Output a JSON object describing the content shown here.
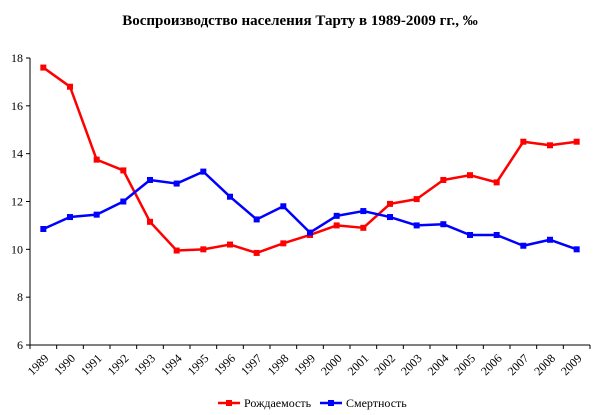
{
  "chart_data": {
    "type": "line",
    "title": "Воспроизводство населения Тарту в 1989-2009 гг., ‰",
    "x": [
      "1989",
      "1990",
      "1991",
      "1992",
      "1993",
      "1994",
      "1995",
      "1996",
      "1997",
      "1998",
      "1999",
      "2000",
      "2001",
      "2002",
      "2003",
      "2004",
      "2005",
      "2006",
      "2007",
      "2008",
      "2009"
    ],
    "ylim": [
      6,
      18
    ],
    "yticks": [
      6,
      8,
      10,
      12,
      14,
      16,
      18
    ],
    "grid": false,
    "legend_position": "bottom",
    "series": [
      {
        "name": "Рождаемость",
        "color": "#ff0000",
        "values": [
          17.6,
          16.8,
          13.75,
          13.3,
          11.15,
          9.95,
          10.0,
          10.2,
          9.85,
          10.25,
          10.6,
          11.0,
          10.9,
          11.9,
          12.1,
          12.9,
          13.1,
          12.8,
          14.5,
          14.35,
          14.5
        ]
      },
      {
        "name": "Смертность",
        "color": "#0000ff",
        "values": [
          10.85,
          11.35,
          11.45,
          12.0,
          12.9,
          12.75,
          13.25,
          12.2,
          11.25,
          11.8,
          10.7,
          11.4,
          11.6,
          11.35,
          11.0,
          11.05,
          10.6,
          10.6,
          10.15,
          10.4,
          10.0
        ]
      }
    ]
  }
}
